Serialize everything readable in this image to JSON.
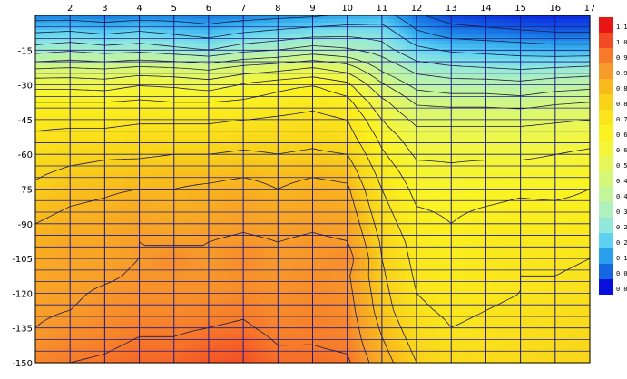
{
  "chart_data": {
    "type": "heatmap",
    "title": "",
    "xlabel": "",
    "ylabel": "",
    "x_ticks": [
      2,
      3,
      4,
      5,
      6,
      7,
      8,
      9,
      10,
      11,
      12,
      13,
      14,
      15,
      16,
      17
    ],
    "y_ticks": [
      -15,
      -30,
      -45,
      -60,
      -75,
      -90,
      -105,
      -120,
      -135,
      -150
    ],
    "xlim": [
      1,
      17
    ],
    "ylim": [
      -150,
      0
    ],
    "grid": true,
    "legend_position": "right",
    "colorbar": {
      "levels": [
        "1.13",
        "1.06",
        "0.99",
        "0.93",
        "0.86",
        "0.80",
        "0.73",
        "0.66",
        "0.60",
        "0.53",
        "0.46",
        "0.40",
        "0.33",
        "0.27",
        "0.20",
        "0.13",
        "0.07",
        "0.00"
      ],
      "colors": [
        "#e81515",
        "#f24a24",
        "#f77a2a",
        "#f79c2a",
        "#f9b81c",
        "#f9d21a",
        "#fae51c",
        "#fbf21f",
        "#f4f63a",
        "#e6f75a",
        "#d6f77a",
        "#c4f59a",
        "#b0f0bc",
        "#93e8dc",
        "#5fd2f2",
        "#2aa0ec",
        "#1466e2",
        "#0a10dc"
      ]
    },
    "colormap": [
      {
        "value": 0.0,
        "color": "#0a10dc"
      },
      {
        "value": 0.07,
        "color": "#1466e2"
      },
      {
        "value": 0.13,
        "color": "#2aa0ec"
      },
      {
        "value": 0.2,
        "color": "#5fd2f2"
      },
      {
        "value": 0.27,
        "color": "#93e8dc"
      },
      {
        "value": 0.33,
        "color": "#b0f0bc"
      },
      {
        "value": 0.4,
        "color": "#c4f59a"
      },
      {
        "value": 0.46,
        "color": "#d6f77a"
      },
      {
        "value": 0.53,
        "color": "#e6f75a"
      },
      {
        "value": 0.6,
        "color": "#f4f63a"
      },
      {
        "value": 0.66,
        "color": "#fbf21f"
      },
      {
        "value": 0.73,
        "color": "#fae51c"
      },
      {
        "value": 0.8,
        "color": "#f9d21a"
      },
      {
        "value": 0.86,
        "color": "#f9b81c"
      },
      {
        "value": 0.93,
        "color": "#f79c2a"
      },
      {
        "value": 0.99,
        "color": "#f77a2a"
      },
      {
        "value": 1.06,
        "color": "#f24a24"
      },
      {
        "value": 1.13,
        "color": "#e81515"
      }
    ],
    "grid_values": {
      "x": [
        1,
        2,
        3,
        4,
        5,
        6,
        7,
        8,
        9,
        10,
        11,
        12,
        13,
        14,
        15,
        16,
        17
      ],
      "y": [
        0,
        -7.5,
        -15,
        -22.5,
        -30,
        -37.5,
        -45,
        -52.5,
        -60,
        -67.5,
        -75,
        -82.5,
        -90,
        -97.5,
        -105,
        -112.5,
        -120,
        -127.5,
        -135,
        -142.5,
        -150
      ],
      "z": [
        [
          0.1,
          0.1,
          0.09,
          0.1,
          0.1,
          0.09,
          0.1,
          0.11,
          0.12,
          0.14,
          0.16,
          0.08,
          0.04,
          0.03,
          0.02,
          0.02,
          0.02
        ],
        [
          0.2,
          0.21,
          0.19,
          0.21,
          0.19,
          0.17,
          0.2,
          0.22,
          0.24,
          0.25,
          0.24,
          0.14,
          0.1,
          0.09,
          0.08,
          0.07,
          0.07
        ],
        [
          0.3,
          0.32,
          0.3,
          0.31,
          0.29,
          0.27,
          0.31,
          0.33,
          0.36,
          0.34,
          0.3,
          0.22,
          0.19,
          0.18,
          0.17,
          0.16,
          0.16
        ],
        [
          0.45,
          0.46,
          0.45,
          0.47,
          0.46,
          0.44,
          0.48,
          0.5,
          0.53,
          0.49,
          0.38,
          0.3,
          0.28,
          0.27,
          0.26,
          0.27,
          0.28
        ],
        [
          0.58,
          0.58,
          0.57,
          0.6,
          0.59,
          0.57,
          0.61,
          0.64,
          0.66,
          0.62,
          0.47,
          0.38,
          0.36,
          0.36,
          0.35,
          0.37,
          0.38
        ],
        [
          0.66,
          0.66,
          0.66,
          0.67,
          0.66,
          0.66,
          0.67,
          0.69,
          0.71,
          0.68,
          0.55,
          0.45,
          0.44,
          0.44,
          0.43,
          0.45,
          0.46
        ],
        [
          0.71,
          0.71,
          0.71,
          0.72,
          0.72,
          0.72,
          0.73,
          0.74,
          0.75,
          0.73,
          0.6,
          0.51,
          0.51,
          0.51,
          0.51,
          0.52,
          0.53
        ],
        [
          0.74,
          0.75,
          0.75,
          0.76,
          0.76,
          0.76,
          0.77,
          0.77,
          0.78,
          0.76,
          0.64,
          0.56,
          0.56,
          0.56,
          0.56,
          0.57,
          0.58
        ],
        [
          0.76,
          0.78,
          0.79,
          0.79,
          0.8,
          0.8,
          0.81,
          0.8,
          0.81,
          0.8,
          0.67,
          0.59,
          0.59,
          0.59,
          0.59,
          0.6,
          0.61
        ],
        [
          0.79,
          0.81,
          0.82,
          0.83,
          0.84,
          0.84,
          0.85,
          0.84,
          0.85,
          0.84,
          0.7,
          0.62,
          0.61,
          0.62,
          0.62,
          0.62,
          0.64
        ],
        [
          0.81,
          0.84,
          0.85,
          0.86,
          0.86,
          0.87,
          0.88,
          0.86,
          0.88,
          0.87,
          0.73,
          0.64,
          0.63,
          0.64,
          0.65,
          0.64,
          0.66
        ],
        [
          0.84,
          0.86,
          0.87,
          0.89,
          0.88,
          0.89,
          0.91,
          0.89,
          0.9,
          0.89,
          0.75,
          0.66,
          0.65,
          0.66,
          0.67,
          0.67,
          0.68
        ],
        [
          0.86,
          0.88,
          0.89,
          0.91,
          0.9,
          0.91,
          0.92,
          0.91,
          0.92,
          0.91,
          0.77,
          0.68,
          0.66,
          0.68,
          0.69,
          0.69,
          0.7
        ],
        [
          0.88,
          0.9,
          0.9,
          0.93,
          0.92,
          0.93,
          0.94,
          0.93,
          0.94,
          0.93,
          0.79,
          0.7,
          0.68,
          0.7,
          0.71,
          0.71,
          0.72
        ],
        [
          0.89,
          0.91,
          0.91,
          0.93,
          0.96,
          0.93,
          0.96,
          0.93,
          0.94,
          0.96,
          0.8,
          0.71,
          0.69,
          0.71,
          0.72,
          0.72,
          0.73
        ],
        [
          0.9,
          0.91,
          0.92,
          0.94,
          0.94,
          0.94,
          0.95,
          0.94,
          0.95,
          0.94,
          0.81,
          0.72,
          0.7,
          0.72,
          0.73,
          0.73,
          0.74
        ],
        [
          0.91,
          0.92,
          0.94,
          0.95,
          0.95,
          0.95,
          0.96,
          0.95,
          0.96,
          0.95,
          0.82,
          0.73,
          0.71,
          0.72,
          0.73,
          0.74,
          0.75
        ],
        [
          0.92,
          0.93,
          0.95,
          0.96,
          0.96,
          0.97,
          0.98,
          0.96,
          0.97,
          0.96,
          0.83,
          0.74,
          0.72,
          0.73,
          0.74,
          0.75,
          0.76
        ],
        [
          0.93,
          0.95,
          0.96,
          0.98,
          0.98,
          0.99,
          1.0,
          0.97,
          0.98,
          0.97,
          0.85,
          0.76,
          0.73,
          0.74,
          0.75,
          0.76,
          0.77
        ],
        [
          0.95,
          0.97,
          0.98,
          1.0,
          1.0,
          1.02,
          1.03,
          0.99,
          0.99,
          0.98,
          0.87,
          0.78,
          0.75,
          0.75,
          0.76,
          0.77,
          0.78
        ],
        [
          0.97,
          0.99,
          1.0,
          1.02,
          1.02,
          1.04,
          1.05,
          1.01,
          1.01,
          1.0,
          0.89,
          0.8,
          0.77,
          0.77,
          0.77,
          0.78,
          0.79
        ]
      ]
    }
  }
}
